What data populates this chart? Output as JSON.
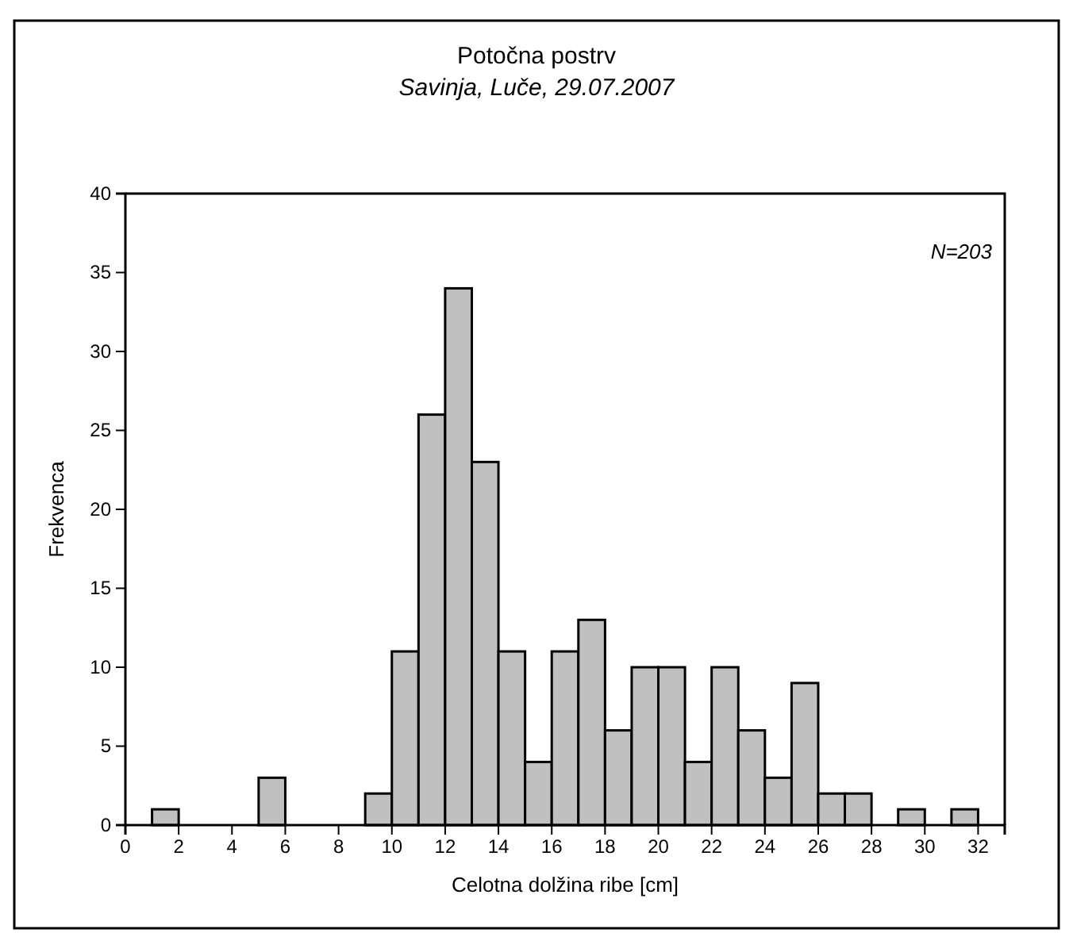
{
  "chart_data": {
    "type": "histogram",
    "title": "Potočna postrv",
    "subtitle": "Savinja, Luče, 29.07.2007",
    "xlabel": "Celotna dolžina ribe [cm]",
    "ylabel": "Frekvenca",
    "annotations": [
      "N=203"
    ],
    "bins": [
      0,
      1,
      2,
      3,
      4,
      5,
      6,
      7,
      8,
      9,
      10,
      11,
      12,
      13,
      14,
      15,
      16,
      17,
      18,
      19,
      20,
      21,
      22,
      23,
      24,
      25,
      26,
      27,
      28,
      29,
      30,
      31,
      32,
      33
    ],
    "values": [
      0,
      1,
      0,
      0,
      0,
      3,
      0,
      0,
      0,
      2,
      11,
      26,
      34,
      23,
      11,
      4,
      11,
      13,
      6,
      10,
      10,
      4,
      10,
      6,
      3,
      9,
      2,
      2,
      0,
      1,
      0,
      1,
      0
    ],
    "color": "#c0c0c0",
    "xlim": [
      0,
      33
    ],
    "xticks": [
      0,
      2,
      4,
      6,
      8,
      10,
      12,
      14,
      16,
      18,
      20,
      22,
      24,
      26,
      28,
      30,
      32
    ],
    "ylim": [
      0,
      40
    ],
    "yticks": [
      0,
      5,
      10,
      15,
      20,
      25,
      30,
      35,
      40
    ],
    "grid": false
  }
}
